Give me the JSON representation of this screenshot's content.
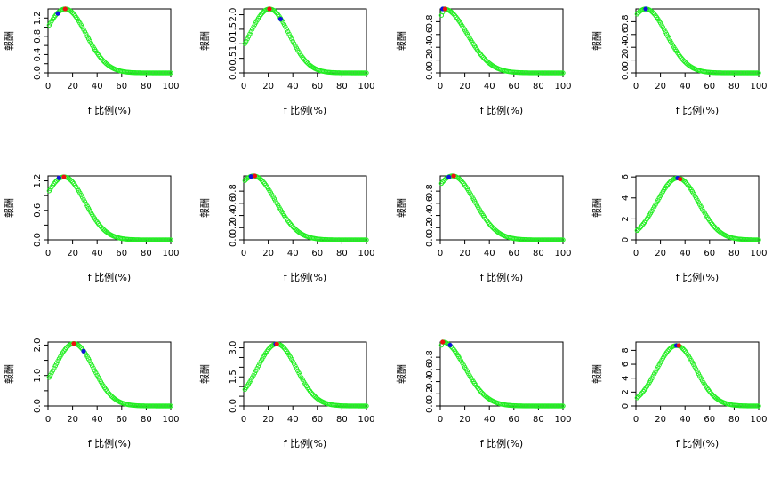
{
  "chart_data": [
    {
      "type": "scatter",
      "xlabel": "f 比例(%)",
      "ylabel": "報酬",
      "xlim": [
        0,
        100
      ],
      "ylim": [
        0,
        1.4
      ],
      "yticks": [
        0,
        0.2,
        0.4,
        0.6,
        0.8,
        1.0,
        1.2
      ],
      "yticks_labels": [
        "0.0",
        "",
        "0.4",
        "",
        "0.8",
        "",
        "1.2"
      ],
      "xticks": [
        0,
        20,
        40,
        60,
        80,
        100
      ],
      "xticks_labels": [
        "0",
        "20",
        "40",
        "60",
        "80",
        "100"
      ],
      "peak_value": 1.4,
      "peak_at": 14,
      "width": 17,
      "red_point": {
        "x": 14,
        "y": 1.4
      },
      "blue_point": {
        "x": 8,
        "y": 1.3
      }
    },
    {
      "type": "scatter",
      "xlabel": "f 比例(%)",
      "ylabel": "報酬",
      "xlim": [
        0,
        100
      ],
      "ylim": [
        0,
        2.2
      ],
      "yticks": [
        0,
        0.5,
        1.0,
        1.5,
        2.0
      ],
      "yticks_labels": [
        "0.0",
        "0.5",
        "1.0",
        "1.5",
        "2.0"
      ],
      "xticks": [
        0,
        20,
        40,
        60,
        80,
        100
      ],
      "xticks_labels": [
        "0",
        "20",
        "40",
        "60",
        "80",
        "100"
      ],
      "peak_value": 2.2,
      "peak_at": 21,
      "width": 16,
      "red_point": {
        "x": 21,
        "y": 2.2
      },
      "blue_point": {
        "x": 30,
        "y": 1.85
      }
    },
    {
      "type": "scatter",
      "xlabel": "f 比例(%)",
      "ylabel": "報酬",
      "xlim": [
        0,
        100
      ],
      "ylim": [
        0,
        1.0
      ],
      "yticks": [
        0,
        0.2,
        0.4,
        0.6,
        0.8
      ],
      "yticks_labels": [
        "0.0",
        "0.2",
        "0.4",
        "0.6",
        "0.8"
      ],
      "xticks": [
        0,
        20,
        40,
        60,
        80,
        100
      ],
      "xticks_labels": [
        "0",
        "20",
        "40",
        "60",
        "80",
        "100"
      ],
      "peak_value": 1.0,
      "peak_at": 3,
      "width": 19,
      "red_point": {
        "x": 4,
        "y": 1.0
      },
      "blue_point": {
        "x": 2,
        "y": 1.0
      }
    },
    {
      "type": "scatter",
      "xlabel": "f 比例(%)",
      "ylabel": "報酬",
      "xlim": [
        0,
        100
      ],
      "ylim": [
        0,
        1.0
      ],
      "yticks": [
        0,
        0.2,
        0.4,
        0.6,
        0.8
      ],
      "yticks_labels": [
        "0.0",
        "0.2",
        "0.4",
        "0.6",
        "0.8"
      ],
      "xticks": [
        0,
        20,
        40,
        60,
        80,
        100
      ],
      "xticks_labels": [
        "0",
        "20",
        "40",
        "60",
        "80",
        "100"
      ],
      "peak_value": 1.0,
      "peak_at": 8,
      "width": 17,
      "red_point": null,
      "blue_point": {
        "x": 8,
        "y": 1.0
      }
    },
    {
      "type": "scatter",
      "xlabel": "f 比例(%)",
      "ylabel": "報酬",
      "xlim": [
        0,
        100
      ],
      "ylim": [
        0,
        1.3
      ],
      "yticks": [
        0,
        0.3,
        0.6,
        0.9,
        1.2
      ],
      "yticks_labels": [
        "0.0",
        "",
        "0.6",
        "",
        "1.2"
      ],
      "xticks": [
        0,
        20,
        40,
        60,
        80,
        100
      ],
      "xticks_labels": [
        "0",
        "20",
        "40",
        "60",
        "80",
        "100"
      ],
      "peak_value": 1.28,
      "peak_at": 13,
      "width": 17,
      "red_point": {
        "x": 13,
        "y": 1.28
      },
      "blue_point": {
        "x": 9,
        "y": 1.26
      }
    },
    {
      "type": "scatter",
      "xlabel": "f 比例(%)",
      "ylabel": "報酬",
      "xlim": [
        0,
        100
      ],
      "ylim": [
        0,
        1.05
      ],
      "yticks": [
        0,
        0.2,
        0.4,
        0.6,
        0.8
      ],
      "yticks_labels": [
        "0.0",
        "0.2",
        "0.4",
        "0.6",
        "0.8"
      ],
      "xticks": [
        0,
        20,
        40,
        60,
        80,
        100
      ],
      "xticks_labels": [
        "0",
        "20",
        "40",
        "60",
        "80",
        "100"
      ],
      "peak_value": 1.05,
      "peak_at": 8,
      "width": 18,
      "red_point": {
        "x": 9,
        "y": 1.05
      },
      "blue_point": {
        "x": 6,
        "y": 1.04
      }
    },
    {
      "type": "scatter",
      "xlabel": "f 比例(%)",
      "ylabel": "報酬",
      "xlim": [
        0,
        100
      ],
      "ylim": [
        0,
        1.05
      ],
      "yticks": [
        0,
        0.2,
        0.4,
        0.6,
        0.8
      ],
      "yticks_labels": [
        "0.0",
        "0.2",
        "0.4",
        "0.6",
        "0.8"
      ],
      "xticks": [
        0,
        20,
        40,
        60,
        80,
        100
      ],
      "xticks_labels": [
        "0",
        "20",
        "40",
        "60",
        "80",
        "100"
      ],
      "peak_value": 1.05,
      "peak_at": 10,
      "width": 18,
      "red_point": {
        "x": 11,
        "y": 1.05
      },
      "blue_point": {
        "x": 7,
        "y": 1.03
      }
    },
    {
      "type": "scatter",
      "xlabel": "f 比例(%)",
      "ylabel": "報酬",
      "xlim": [
        0,
        100
      ],
      "ylim": [
        0,
        6.1
      ],
      "yticks": [
        0,
        2,
        4,
        6
      ],
      "yticks_labels": [
        "0",
        "2",
        "4",
        "6"
      ],
      "xticks": [
        0,
        20,
        40,
        60,
        80,
        100
      ],
      "xticks_labels": [
        "0",
        "20",
        "40",
        "60",
        "80",
        "100"
      ],
      "peak_value": 5.9,
      "peak_at": 34,
      "width": 17,
      "red_point": {
        "x": 36,
        "y": 5.8
      },
      "blue_point": {
        "x": 34,
        "y": 5.9
      }
    },
    {
      "type": "scatter",
      "xlabel": "f 比例(%)",
      "ylabel": "報酬",
      "xlim": [
        0,
        100
      ],
      "ylim": [
        0,
        2.1
      ],
      "yticks": [
        0,
        0.5,
        1.0,
        1.5,
        2.0
      ],
      "yticks_labels": [
        "0.0",
        "",
        "1.0",
        "",
        "2.0"
      ],
      "xticks": [
        0,
        20,
        40,
        60,
        80,
        100
      ],
      "xticks_labels": [
        "0",
        "20",
        "40",
        "60",
        "80",
        "100"
      ],
      "peak_value": 2.05,
      "peak_at": 21,
      "width": 16,
      "red_point": {
        "x": 21,
        "y": 2.05
      },
      "blue_point": {
        "x": 29,
        "y": 1.8
      }
    },
    {
      "type": "scatter",
      "xlabel": "f 比例(%)",
      "ylabel": "報酬",
      "xlim": [
        0,
        100
      ],
      "ylim": [
        0,
        3.3
      ],
      "yticks": [
        0,
        0.5,
        1.0,
        1.5,
        2.0,
        2.5,
        3.0
      ],
      "yticks_labels": [
        "0.0",
        "",
        "",
        "1.5",
        "",
        "",
        "3.0"
      ],
      "xticks": [
        0,
        20,
        40,
        60,
        80,
        100
      ],
      "xticks_labels": [
        "0",
        "20",
        "40",
        "60",
        "80",
        "100"
      ],
      "peak_value": 3.2,
      "peak_at": 27,
      "width": 16,
      "red_point": {
        "x": 27,
        "y": 3.2
      },
      "blue_point": {
        "x": 26,
        "y": 3.2
      }
    },
    {
      "type": "scatter",
      "xlabel": "f 比例(%)",
      "ylabel": "報酬",
      "xlim": [
        0,
        100
      ],
      "ylim": [
        0,
        1.05
      ],
      "yticks": [
        0,
        0.2,
        0.4,
        0.6,
        0.8
      ],
      "yticks_labels": [
        "0.0",
        "0.2",
        "0.4",
        "0.6",
        "0.8"
      ],
      "xticks": [
        0,
        20,
        40,
        60,
        80,
        100
      ],
      "xticks_labels": [
        "0",
        "20",
        "40",
        "60",
        "80",
        "100"
      ],
      "peak_value": 1.05,
      "peak_at": 2,
      "width": 18,
      "red_point": {
        "x": 2,
        "y": 1.05
      },
      "blue_point": {
        "x": 8,
        "y": 1.0
      }
    },
    {
      "type": "scatter",
      "xlabel": "f 比例(%)",
      "ylabel": "報酬",
      "xlim": [
        0,
        100
      ],
      "ylim": [
        0,
        9.2
      ],
      "yticks": [
        0,
        2,
        4,
        6,
        8
      ],
      "yticks_labels": [
        "0",
        "2",
        "4",
        "6",
        "8"
      ],
      "xticks": [
        0,
        20,
        40,
        60,
        80,
        100
      ],
      "xticks_labels": [
        "0",
        "20",
        "40",
        "60",
        "80",
        "100"
      ],
      "peak_value": 8.7,
      "peak_at": 33,
      "width": 16,
      "red_point": {
        "x": 35,
        "y": 8.7
      },
      "blue_point": {
        "x": 33,
        "y": 8.7
      }
    }
  ],
  "colors": {
    "points": "#22ee22",
    "red_point": "#ee1111",
    "blue_point": "#1111dd",
    "axis": "#000000"
  }
}
